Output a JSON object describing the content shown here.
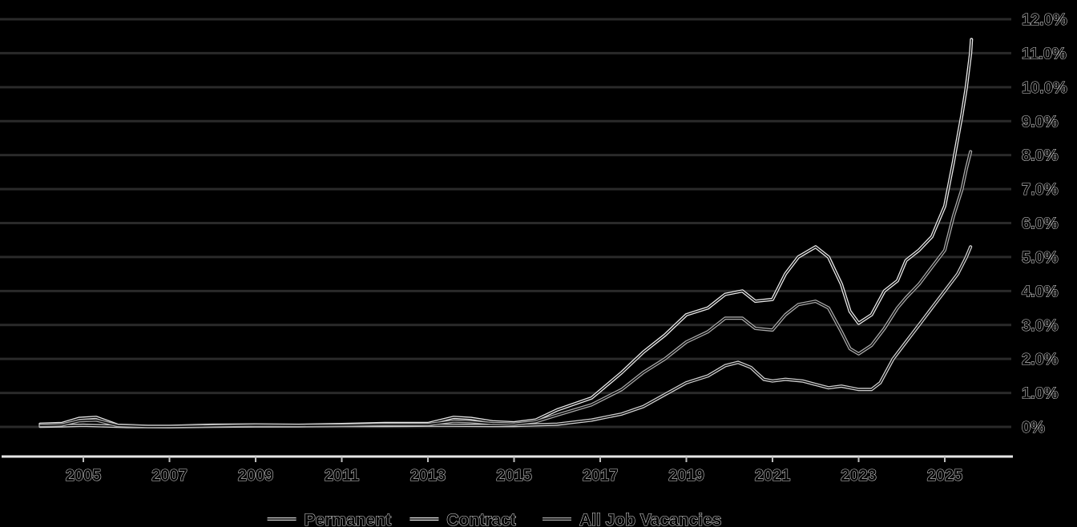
{
  "chart_data": {
    "type": "line",
    "title": "",
    "xlabel": "",
    "ylabel": "",
    "xlim": [
      2004.0,
      2026.5
    ],
    "ylim": [
      0,
      12
    ],
    "grid": true,
    "legend_position": "bottom",
    "y_ticks": [
      0,
      1,
      2,
      3,
      4,
      5,
      6,
      7,
      8,
      9,
      10,
      11,
      12
    ],
    "y_tick_labels": [
      "0%",
      "1.0%",
      "2.0%",
      "3.0%",
      "4.0%",
      "5.0%",
      "6.0%",
      "7.0%",
      "8.0%",
      "9.0%",
      "10.0%",
      "11.0%",
      "12.0%"
    ],
    "x_ticks": [
      2005,
      2007,
      2009,
      2011,
      2013,
      2015,
      2017,
      2019,
      2021,
      2023,
      2025
    ],
    "x_tick_labels": [
      "2005",
      "2007",
      "2009",
      "2011",
      "2013",
      "2015",
      "2017",
      "2019",
      "2021",
      "2023",
      "2025"
    ],
    "series": [
      {
        "name": "Permanent",
        "color": "#cfcfcf",
        "points": [
          [
            2004.0,
            0.02
          ],
          [
            2004.5,
            0.03
          ],
          [
            2005.0,
            0.05
          ],
          [
            2005.5,
            0.03
          ],
          [
            2006.0,
            0.01
          ],
          [
            2007.0,
            0.0
          ],
          [
            2008.0,
            0.02
          ],
          [
            2009.0,
            0.03
          ],
          [
            2010.0,
            0.03
          ],
          [
            2011.0,
            0.04
          ],
          [
            2012.0,
            0.04
          ],
          [
            2013.0,
            0.05
          ],
          [
            2013.6,
            0.05
          ],
          [
            2014.5,
            0.04
          ],
          [
            2015.0,
            0.04
          ],
          [
            2016.0,
            0.08
          ],
          [
            2016.8,
            0.2
          ],
          [
            2017.5,
            0.38
          ],
          [
            2018.0,
            0.6
          ],
          [
            2018.5,
            0.95
          ],
          [
            2019.0,
            1.3
          ],
          [
            2019.5,
            1.5
          ],
          [
            2019.9,
            1.8
          ],
          [
            2020.2,
            1.9
          ],
          [
            2020.5,
            1.75
          ],
          [
            2020.8,
            1.4
          ],
          [
            2021.0,
            1.35
          ],
          [
            2021.3,
            1.4
          ],
          [
            2021.7,
            1.35
          ],
          [
            2022.0,
            1.25
          ],
          [
            2022.3,
            1.15
          ],
          [
            2022.6,
            1.2
          ],
          [
            2022.8,
            1.15
          ],
          [
            2023.0,
            1.1
          ],
          [
            2023.3,
            1.1
          ],
          [
            2023.5,
            1.3
          ],
          [
            2023.8,
            2.0
          ],
          [
            2024.1,
            2.5
          ],
          [
            2024.4,
            3.0
          ],
          [
            2024.7,
            3.5
          ],
          [
            2025.0,
            4.0
          ],
          [
            2025.3,
            4.5
          ],
          [
            2025.5,
            5.0
          ],
          [
            2025.6,
            5.3
          ]
        ]
      },
      {
        "name": "Contract",
        "color": "#e8e8e8",
        "points": [
          [
            2004.0,
            0.08
          ],
          [
            2004.5,
            0.1
          ],
          [
            2004.9,
            0.25
          ],
          [
            2005.3,
            0.28
          ],
          [
            2005.8,
            0.05
          ],
          [
            2006.5,
            0.02
          ],
          [
            2007.0,
            0.02
          ],
          [
            2008.0,
            0.05
          ],
          [
            2009.0,
            0.06
          ],
          [
            2010.0,
            0.05
          ],
          [
            2011.0,
            0.07
          ],
          [
            2012.0,
            0.1
          ],
          [
            2013.0,
            0.1
          ],
          [
            2013.6,
            0.28
          ],
          [
            2014.0,
            0.25
          ],
          [
            2014.5,
            0.15
          ],
          [
            2015.0,
            0.12
          ],
          [
            2015.5,
            0.2
          ],
          [
            2016.0,
            0.5
          ],
          [
            2016.8,
            0.85
          ],
          [
            2017.5,
            1.6
          ],
          [
            2018.0,
            2.2
          ],
          [
            2018.5,
            2.7
          ],
          [
            2019.0,
            3.3
          ],
          [
            2019.5,
            3.5
          ],
          [
            2019.9,
            3.9
          ],
          [
            2020.3,
            4.0
          ],
          [
            2020.6,
            3.7
          ],
          [
            2021.0,
            3.75
          ],
          [
            2021.3,
            4.5
          ],
          [
            2021.6,
            5.0
          ],
          [
            2022.0,
            5.3
          ],
          [
            2022.3,
            5.0
          ],
          [
            2022.6,
            4.2
          ],
          [
            2022.8,
            3.4
          ],
          [
            2023.0,
            3.05
          ],
          [
            2023.3,
            3.3
          ],
          [
            2023.6,
            4.0
          ],
          [
            2023.9,
            4.3
          ],
          [
            2024.1,
            4.9
          ],
          [
            2024.4,
            5.2
          ],
          [
            2024.7,
            5.6
          ],
          [
            2025.0,
            6.5
          ],
          [
            2025.2,
            7.8
          ],
          [
            2025.4,
            9.2
          ],
          [
            2025.5,
            10.0
          ],
          [
            2025.6,
            11.0
          ],
          [
            2025.62,
            11.4
          ]
        ]
      },
      {
        "name": "All Job Vacancies",
        "color": "#a8a8a8",
        "points": [
          [
            2004.0,
            0.04
          ],
          [
            2004.5,
            0.06
          ],
          [
            2004.9,
            0.18
          ],
          [
            2005.3,
            0.2
          ],
          [
            2005.8,
            0.04
          ],
          [
            2006.5,
            0.01
          ],
          [
            2007.0,
            0.01
          ],
          [
            2008.0,
            0.03
          ],
          [
            2009.0,
            0.05
          ],
          [
            2010.0,
            0.04
          ],
          [
            2011.0,
            0.05
          ],
          [
            2012.0,
            0.07
          ],
          [
            2013.0,
            0.07
          ],
          [
            2013.6,
            0.17
          ],
          [
            2014.0,
            0.15
          ],
          [
            2014.5,
            0.1
          ],
          [
            2015.0,
            0.08
          ],
          [
            2015.5,
            0.15
          ],
          [
            2016.0,
            0.35
          ],
          [
            2016.8,
            0.65
          ],
          [
            2017.5,
            1.1
          ],
          [
            2018.0,
            1.6
          ],
          [
            2018.5,
            2.0
          ],
          [
            2019.0,
            2.5
          ],
          [
            2019.5,
            2.8
          ],
          [
            2019.9,
            3.2
          ],
          [
            2020.3,
            3.2
          ],
          [
            2020.6,
            2.9
          ],
          [
            2021.0,
            2.85
          ],
          [
            2021.3,
            3.3
          ],
          [
            2021.6,
            3.6
          ],
          [
            2022.0,
            3.7
          ],
          [
            2022.3,
            3.5
          ],
          [
            2022.6,
            2.8
          ],
          [
            2022.8,
            2.3
          ],
          [
            2023.0,
            2.15
          ],
          [
            2023.3,
            2.4
          ],
          [
            2023.6,
            2.9
          ],
          [
            2023.9,
            3.5
          ],
          [
            2024.1,
            3.8
          ],
          [
            2024.4,
            4.2
          ],
          [
            2024.7,
            4.7
          ],
          [
            2025.0,
            5.2
          ],
          [
            2025.2,
            6.2
          ],
          [
            2025.4,
            7.0
          ],
          [
            2025.5,
            7.6
          ],
          [
            2025.6,
            8.1
          ]
        ]
      }
    ]
  }
}
